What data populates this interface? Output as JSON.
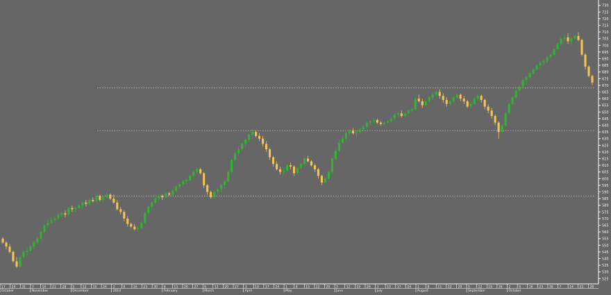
{
  "chart_data": {
    "type": "candlestick",
    "title": "",
    "xlabel": "",
    "ylabel": "",
    "ylim": [
      521,
      734
    ],
    "grid": false,
    "y_ticks": [
      525,
      530,
      535,
      540,
      545,
      550,
      555,
      560,
      565,
      570,
      575,
      580,
      585,
      590,
      595,
      600,
      605,
      610,
      615,
      620,
      625,
      630,
      635,
      640,
      645,
      650,
      655,
      660,
      665,
      670,
      675,
      680,
      685,
      690,
      695,
      700,
      705,
      710,
      715,
      720,
      725,
      730
    ],
    "horizontal_levels": [
      587,
      636,
      668
    ],
    "date_rows": {
      "days": [
        "17",
        "24",
        "31",
        "7",
        "14",
        "21",
        "28",
        "5",
        "12",
        "19",
        "26",
        "2",
        "9",
        "16",
        "23",
        "30",
        "6",
        "13",
        "20",
        "27",
        "6",
        "13",
        "20",
        "27",
        "3",
        "10",
        "17",
        "24",
        "1",
        "8",
        "15",
        "22",
        "29",
        "5",
        "12",
        "19",
        "26",
        "3",
        "10",
        "17",
        "24",
        "1",
        "8",
        "15",
        "22",
        "29",
        "5",
        "12",
        "19",
        "26",
        "2",
        "9",
        "16",
        "23",
        "30",
        "7",
        "14",
        "21",
        "28"
      ],
      "months": [
        "October",
        "November",
        "December",
        "2014",
        "February",
        "March",
        "April",
        "May",
        "June",
        "July",
        "August",
        "September",
        "October"
      ]
    },
    "colors": {
      "up": "#2fb52f",
      "down": "#f5c452",
      "background": "#666666",
      "text": "#f2f2f2",
      "level": "#cfcfcf"
    },
    "candles": [
      [
        555,
        556,
        551,
        552
      ],
      [
        552,
        553,
        547,
        549
      ],
      [
        549,
        551,
        544,
        545
      ],
      [
        545,
        546,
        537,
        538
      ],
      [
        538,
        541,
        533,
        534
      ],
      [
        534,
        543,
        533,
        541
      ],
      [
        541,
        546,
        540,
        545
      ],
      [
        545,
        548,
        542,
        546
      ],
      [
        546,
        550,
        545,
        549
      ],
      [
        549,
        553,
        547,
        552
      ],
      [
        552,
        556,
        551,
        555
      ],
      [
        555,
        561,
        554,
        560
      ],
      [
        560,
        566,
        559,
        565
      ],
      [
        565,
        569,
        563,
        567
      ],
      [
        567,
        571,
        566,
        569
      ],
      [
        569,
        572,
        567,
        570
      ],
      [
        570,
        574,
        569,
        573
      ],
      [
        573,
        575,
        571,
        574
      ],
      [
        574,
        576,
        571,
        573
      ],
      [
        573,
        579,
        572,
        578
      ],
      [
        578,
        580,
        575,
        577
      ],
      [
        577,
        579,
        575,
        578
      ],
      [
        578,
        581,
        577,
        580
      ],
      [
        580,
        583,
        577,
        582
      ],
      [
        582,
        584,
        579,
        581
      ],
      [
        581,
        585,
        580,
        584
      ],
      [
        584,
        586,
        582,
        583
      ],
      [
        583,
        589,
        582,
        587
      ],
      [
        587,
        588,
        583,
        584
      ],
      [
        584,
        587,
        582,
        586
      ],
      [
        586,
        590,
        585,
        588
      ],
      [
        588,
        589,
        584,
        585
      ],
      [
        585,
        588,
        581,
        582
      ],
      [
        582,
        584,
        576,
        577
      ],
      [
        577,
        579,
        573,
        575
      ],
      [
        575,
        576,
        568,
        570
      ],
      [
        570,
        572,
        564,
        566
      ],
      [
        566,
        567,
        563,
        564
      ],
      [
        564,
        566,
        561,
        562
      ],
      [
        562,
        564,
        560,
        563
      ],
      [
        563,
        568,
        562,
        567
      ],
      [
        567,
        575,
        566,
        574
      ],
      [
        574,
        580,
        573,
        579
      ],
      [
        579,
        583,
        577,
        582
      ],
      [
        582,
        586,
        581,
        585
      ],
      [
        585,
        588,
        583,
        587
      ],
      [
        587,
        588,
        584,
        586
      ],
      [
        586,
        590,
        585,
        589
      ],
      [
        589,
        590,
        587,
        588
      ],
      [
        588,
        592,
        587,
        591
      ],
      [
        591,
        595,
        590,
        594
      ],
      [
        594,
        597,
        592,
        596
      ],
      [
        596,
        599,
        594,
        598
      ],
      [
        598,
        600,
        596,
        599
      ],
      [
        599,
        603,
        598,
        602
      ],
      [
        602,
        606,
        601,
        605
      ],
      [
        605,
        608,
        604,
        607
      ],
      [
        607,
        608,
        603,
        604
      ],
      [
        604,
        605,
        593,
        595
      ],
      [
        595,
        596,
        588,
        590
      ],
      [
        590,
        591,
        585,
        586
      ],
      [
        586,
        591,
        585,
        590
      ],
      [
        590,
        593,
        588,
        592
      ],
      [
        592,
        596,
        590,
        595
      ],
      [
        595,
        599,
        593,
        598
      ],
      [
        598,
        606,
        597,
        605
      ],
      [
        605,
        615,
        604,
        614
      ],
      [
        614,
        620,
        613,
        619
      ],
      [
        619,
        624,
        617,
        622
      ],
      [
        622,
        627,
        621,
        626
      ],
      [
        626,
        630,
        624,
        629
      ],
      [
        629,
        634,
        628,
        633
      ],
      [
        633,
        637,
        630,
        635
      ],
      [
        635,
        636,
        631,
        632
      ],
      [
        632,
        634,
        628,
        630
      ],
      [
        630,
        632,
        624,
        626
      ],
      [
        626,
        628,
        620,
        622
      ],
      [
        622,
        623,
        614,
        616
      ],
      [
        616,
        617,
        609,
        611
      ],
      [
        611,
        613,
        606,
        607
      ],
      [
        607,
        609,
        603,
        605
      ],
      [
        605,
        608,
        603,
        606
      ],
      [
        606,
        611,
        605,
        610
      ],
      [
        610,
        612,
        607,
        609
      ],
      [
        609,
        610,
        602,
        604
      ],
      [
        604,
        609,
        603,
        608
      ],
      [
        608,
        612,
        607,
        611
      ],
      [
        611,
        616,
        610,
        615
      ],
      [
        615,
        617,
        612,
        613
      ],
      [
        613,
        614,
        609,
        610
      ],
      [
        610,
        611,
        605,
        607
      ],
      [
        607,
        608,
        600,
        602
      ],
      [
        602,
        603,
        595,
        597
      ],
      [
        597,
        601,
        596,
        600
      ],
      [
        600,
        606,
        599,
        605
      ],
      [
        605,
        616,
        604,
        615
      ],
      [
        615,
        623,
        614,
        621
      ],
      [
        621,
        629,
        620,
        627
      ],
      [
        627,
        632,
        626,
        630
      ],
      [
        630,
        635,
        629,
        634
      ],
      [
        634,
        637,
        632,
        636
      ],
      [
        636,
        638,
        633,
        634
      ],
      [
        634,
        636,
        631,
        635
      ],
      [
        635,
        638,
        634,
        637
      ],
      [
        637,
        640,
        636,
        639
      ],
      [
        639,
        643,
        638,
        642
      ],
      [
        642,
        644,
        640,
        643
      ],
      [
        643,
        645,
        641,
        644
      ],
      [
        644,
        645,
        641,
        642
      ],
      [
        642,
        643,
        640,
        641
      ],
      [
        641,
        643,
        640,
        642
      ],
      [
        642,
        644,
        641,
        643
      ],
      [
        643,
        646,
        642,
        645
      ],
      [
        645,
        649,
        644,
        648
      ],
      [
        648,
        650,
        646,
        649
      ],
      [
        649,
        651,
        646,
        647
      ],
      [
        647,
        650,
        646,
        649
      ],
      [
        649,
        652,
        648,
        651
      ],
      [
        651,
        653,
        650,
        652
      ],
      [
        652,
        661,
        651,
        660
      ],
      [
        660,
        663,
        657,
        658
      ],
      [
        658,
        660,
        653,
        655
      ],
      [
        655,
        659,
        654,
        658
      ],
      [
        658,
        662,
        657,
        661
      ],
      [
        661,
        664,
        659,
        663
      ],
      [
        663,
        666,
        661,
        665
      ],
      [
        665,
        667,
        660,
        662
      ],
      [
        662,
        664,
        657,
        659
      ],
      [
        659,
        661,
        654,
        656
      ],
      [
        656,
        659,
        655,
        658
      ],
      [
        658,
        662,
        657,
        661
      ],
      [
        661,
        664,
        660,
        663
      ],
      [
        663,
        664,
        658,
        660
      ],
      [
        660,
        662,
        656,
        658
      ],
      [
        658,
        659,
        653,
        654
      ],
      [
        654,
        657,
        653,
        656
      ],
      [
        656,
        661,
        655,
        660
      ],
      [
        660,
        663,
        658,
        662
      ],
      [
        662,
        663,
        657,
        659
      ],
      [
        659,
        660,
        652,
        654
      ],
      [
        654,
        656,
        649,
        651
      ],
      [
        651,
        653,
        645,
        647
      ],
      [
        647,
        648,
        640,
        642
      ],
      [
        642,
        643,
        630,
        635
      ],
      [
        635,
        641,
        634,
        640
      ],
      [
        640,
        650,
        639,
        649
      ],
      [
        649,
        657,
        648,
        656
      ],
      [
        656,
        662,
        655,
        661
      ],
      [
        661,
        667,
        660,
        666
      ],
      [
        666,
        670,
        665,
        669
      ],
      [
        669,
        675,
        668,
        674
      ],
      [
        674,
        677,
        671,
        676
      ],
      [
        676,
        680,
        675,
        679
      ],
      [
        679,
        683,
        678,
        682
      ],
      [
        682,
        686,
        681,
        685
      ],
      [
        685,
        688,
        683,
        687
      ],
      [
        687,
        689,
        685,
        688
      ],
      [
        688,
        692,
        687,
        691
      ],
      [
        691,
        694,
        690,
        693
      ],
      [
        693,
        698,
        692,
        697
      ],
      [
        697,
        702,
        696,
        701
      ],
      [
        701,
        706,
        700,
        705
      ],
      [
        705,
        708,
        703,
        706
      ],
      [
        706,
        709,
        701,
        703
      ],
      [
        703,
        706,
        700,
        705
      ],
      [
        705,
        708,
        704,
        707
      ],
      [
        707,
        710,
        703,
        704
      ],
      [
        704,
        705,
        692,
        693
      ],
      [
        693,
        694,
        682,
        684
      ],
      [
        684,
        685,
        676,
        677
      ],
      [
        677,
        678,
        670,
        672
      ]
    ]
  }
}
